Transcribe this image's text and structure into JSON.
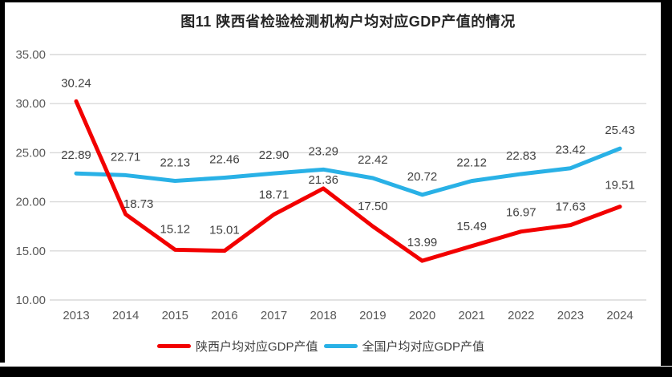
{
  "chart_data": {
    "type": "line",
    "title": "图11  陕西省检验检测机构户均对应GDP产值的情况",
    "categories": [
      "2013",
      "2014",
      "2015",
      "2016",
      "2017",
      "2018",
      "2019",
      "2020",
      "2021",
      "2022",
      "2023",
      "2024"
    ],
    "series": [
      {
        "name": "陕西户均对应GDP产值",
        "color": "#f20000",
        "values": [
          30.24,
          18.73,
          15.12,
          15.01,
          18.71,
          21.36,
          17.5,
          13.99,
          15.49,
          16.97,
          17.63,
          19.51
        ]
      },
      {
        "name": "全国户均对应GDP产值",
        "color": "#29b1e6",
        "values": [
          22.89,
          22.71,
          22.13,
          22.46,
          22.9,
          23.29,
          22.42,
          20.72,
          22.12,
          22.83,
          23.42,
          25.43
        ]
      }
    ],
    "ylim": [
      10,
      35
    ],
    "yticks": [
      "35.00",
      "30.00",
      "25.00",
      "20.00",
      "15.00",
      "10.00"
    ],
    "grid": true,
    "legend_position": "bottom",
    "value_label_decimals": 2,
    "colors": {
      "gridline": "#d9d9d9",
      "tick_label": "#595959",
      "data_label": "#404040",
      "title": "#262626",
      "border": "#000000"
    }
  }
}
